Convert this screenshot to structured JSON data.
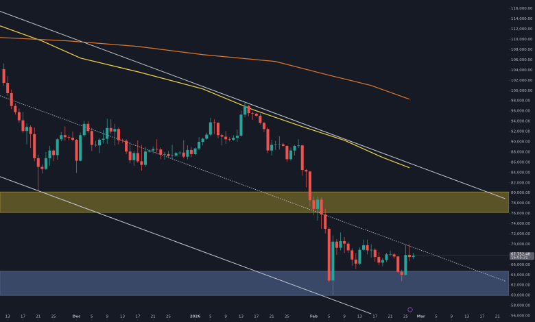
{
  "chart_data": {
    "type": "candlestick",
    "x": [
      "2025-11-12",
      "2025-11-13",
      "2025-11-14",
      "2025-11-15",
      "2025-11-16",
      "2025-11-17",
      "2025-11-18",
      "2025-11-19",
      "2025-11-20",
      "2025-11-21",
      "2025-11-22",
      "2025-11-23",
      "2025-11-24",
      "2025-11-25",
      "2025-11-26",
      "2025-11-27",
      "2025-11-28",
      "2025-11-29",
      "2025-11-30",
      "2025-12-01",
      "2025-12-02",
      "2025-12-03",
      "2025-12-04",
      "2025-12-05",
      "2025-12-06",
      "2025-12-07",
      "2025-12-08",
      "2025-12-09",
      "2025-12-10",
      "2025-12-11",
      "2025-12-12",
      "2025-12-13",
      "2025-12-14",
      "2025-12-15",
      "2025-12-16",
      "2025-12-17",
      "2025-12-18",
      "2025-12-19",
      "2025-12-20",
      "2025-12-21",
      "2025-12-22",
      "2025-12-23",
      "2025-12-24",
      "2025-12-25",
      "2025-12-26",
      "2025-12-27",
      "2025-12-28",
      "2025-12-29",
      "2025-12-30",
      "2025-12-31",
      "2026-01-01",
      "2026-01-02",
      "2026-01-03",
      "2026-01-04",
      "2026-01-05",
      "2026-01-06",
      "2026-01-07",
      "2026-01-08",
      "2026-01-09",
      "2026-01-10",
      "2026-01-11",
      "2026-01-12",
      "2026-01-13",
      "2026-01-14",
      "2026-01-15",
      "2026-01-16",
      "2026-01-17",
      "2026-01-18",
      "2026-01-19",
      "2026-01-20",
      "2026-01-21",
      "2026-01-22",
      "2026-01-23",
      "2026-01-24",
      "2026-01-25",
      "2026-01-26",
      "2026-01-27",
      "2026-01-28",
      "2026-01-29",
      "2026-01-30",
      "2026-01-31",
      "2026-02-01",
      "2026-02-02",
      "2026-02-03",
      "2026-02-04",
      "2026-02-05",
      "2026-02-06",
      "2026-02-07",
      "2026-02-08",
      "2026-02-09",
      "2026-02-10",
      "2026-02-11",
      "2026-02-12",
      "2026-02-13",
      "2026-02-14",
      "2026-02-15",
      "2026-02-16",
      "2026-02-17",
      "2026-02-18",
      "2026-02-19",
      "2026-02-20",
      "2026-02-21",
      "2026-02-22",
      "2026-02-23",
      "2026-02-24",
      "2026-02-25",
      "2026-02-26",
      "2026-02-27"
    ],
    "open": [
      104200,
      101500,
      99500,
      97000,
      95800,
      94200,
      92100,
      92900,
      91500,
      86800,
      85100,
      84700,
      86800,
      88300,
      87400,
      90500,
      91300,
      90900,
      90800,
      90400,
      86300,
      91300,
      93500,
      92100,
      89400,
      89300,
      90400,
      90600,
      92700,
      92000,
      92500,
      90300,
      90200,
      88100,
      86400,
      87800,
      86200,
      85500,
      88100,
      88300,
      88600,
      88500,
      87500,
      87600,
      87200,
      87300,
      87800,
      87900,
      87100,
      88400,
      87600,
      88700,
      90000,
      90600,
      91400,
      93800,
      93700,
      91300,
      91000,
      90500,
      90400,
      90800,
      91200,
      95300,
      97000,
      95600,
      95500,
      95100,
      93700,
      92500,
      88300,
      89400,
      89500,
      89500,
      89200,
      86600,
      88300,
      89200,
      89300,
      84500,
      84200,
      78600,
      76900,
      78700,
      75800,
      73000,
      62900,
      70500,
      69300,
      70600,
      70100,
      68800,
      67000,
      66200,
      68900,
      69800,
      68800,
      68900,
      67500,
      66400,
      66900,
      68000,
      68000,
      67600,
      64600,
      64000,
      67900,
      67500
    ],
    "high": [
      105300,
      102800,
      100200,
      97500,
      96500,
      95800,
      93600,
      93200,
      92800,
      87500,
      85600,
      88000,
      89200,
      88500,
      90700,
      91900,
      93000,
      91300,
      92000,
      90500,
      91800,
      94100,
      94000,
      92700,
      90200,
      90700,
      92300,
      94500,
      94400,
      93500,
      92800,
      90600,
      90500,
      90000,
      88200,
      90300,
      89400,
      89000,
      88500,
      89100,
      90500,
      88900,
      88000,
      88200,
      89400,
      88000,
      88200,
      90300,
      89300,
      89000,
      88900,
      90900,
      90800,
      91800,
      94700,
      94400,
      93800,
      91600,
      92100,
      90900,
      91300,
      92400,
      96100,
      97900,
      97200,
      95900,
      95600,
      95500,
      93900,
      92800,
      90400,
      90200,
      91100,
      89800,
      89300,
      88900,
      89400,
      90500,
      89400,
      84700,
      84300,
      79300,
      79300,
      79100,
      76900,
      73300,
      71700,
      71000,
      72300,
      71400,
      70500,
      69200,
      68300,
      69400,
      70900,
      70900,
      70000,
      69200,
      68400,
      67300,
      68300,
      68700,
      68300,
      67700,
      65000,
      69900,
      70000,
      68300
    ],
    "low": [
      101000,
      99000,
      96400,
      95300,
      93700,
      91700,
      89500,
      88800,
      86200,
      80600,
      83800,
      84500,
      85300,
      86200,
      86500,
      90100,
      90200,
      90300,
      90100,
      83900,
      86200,
      91000,
      91700,
      88200,
      89000,
      87800,
      89700,
      89600,
      91500,
      89300,
      89500,
      89800,
      87600,
      85800,
      85300,
      85900,
      84400,
      85100,
      87900,
      87700,
      87900,
      86600,
      86500,
      86900,
      86600,
      87100,
      87400,
      86800,
      86600,
      87000,
      87400,
      88400,
      89300,
      90400,
      91100,
      91500,
      90700,
      89300,
      89600,
      90100,
      90200,
      90000,
      91000,
      94800,
      95000,
      94300,
      94900,
      93400,
      91900,
      87800,
      87300,
      88400,
      88500,
      89100,
      86100,
      86300,
      87300,
      88800,
      83400,
      81100,
      77400,
      75700,
      74600,
      73000,
      72100,
      62600,
      60100,
      67900,
      68800,
      68300,
      68300,
      65800,
      65200,
      65900,
      68700,
      68000,
      67400,
      66600,
      65900,
      65700,
      66500,
      67700,
      67200,
      64300,
      62800,
      63900,
      66700,
      67100
    ],
    "close": [
      101500,
      99500,
      97000,
      95800,
      94200,
      92100,
      92900,
      91500,
      86800,
      85100,
      84700,
      86800,
      88300,
      87400,
      90500,
      91300,
      90900,
      90800,
      90400,
      86300,
      91300,
      93500,
      92100,
      89400,
      89300,
      90400,
      90600,
      92700,
      92000,
      92500,
      90300,
      90200,
      88100,
      86400,
      87800,
      86200,
      85500,
      88100,
      88300,
      88600,
      88500,
      87500,
      87600,
      87200,
      87300,
      87800,
      87900,
      87100,
      88400,
      87600,
      88700,
      90000,
      90600,
      91400,
      93800,
      93700,
      91300,
      91000,
      90500,
      90400,
      90800,
      91200,
      95300,
      97000,
      95600,
      95500,
      95100,
      93700,
      92500,
      88300,
      89400,
      89500,
      89500,
      89200,
      86600,
      88300,
      89200,
      89300,
      84500,
      84200,
      78600,
      76900,
      78700,
      75800,
      73000,
      62900,
      70500,
      69300,
      70600,
      70100,
      68800,
      67000,
      66200,
      68900,
      69800,
      68800,
      68900,
      67500,
      66400,
      66900,
      68000,
      68000,
      67600,
      64600,
      64000,
      67900,
      67500,
      67752.48
    ],
    "up_color": "#26a69a",
    "down_color": "#ef5350",
    "xlim": [
      "2025-11-11",
      "2026-03-24"
    ],
    "ylim": [
      54800,
      117700
    ],
    "xticks": [
      {
        "value": "2025-11-13",
        "label": "13"
      },
      {
        "value": "2025-11-17",
        "label": "17"
      },
      {
        "value": "2025-11-21",
        "label": "21"
      },
      {
        "value": "2025-11-25",
        "label": "25"
      },
      {
        "value": "2025-12-01",
        "label": "Dec"
      },
      {
        "value": "2025-12-05",
        "label": "5"
      },
      {
        "value": "2025-12-09",
        "label": "9"
      },
      {
        "value": "2025-12-13",
        "label": "13"
      },
      {
        "value": "2025-12-17",
        "label": "17"
      },
      {
        "value": "2025-12-21",
        "label": "21"
      },
      {
        "value": "2025-12-25",
        "label": "25"
      },
      {
        "value": "2026-01-01",
        "label": "2026"
      },
      {
        "value": "2026-01-05",
        "label": "5"
      },
      {
        "value": "2026-01-09",
        "label": "9"
      },
      {
        "value": "2026-01-13",
        "label": "13"
      },
      {
        "value": "2026-01-17",
        "label": "17"
      },
      {
        "value": "2026-01-21",
        "label": "21"
      },
      {
        "value": "2026-01-25",
        "label": "25"
      },
      {
        "value": "2026-02-01",
        "label": "Feb"
      },
      {
        "value": "2026-02-05",
        "label": "5"
      },
      {
        "value": "2026-02-09",
        "label": "9"
      },
      {
        "value": "2026-02-13",
        "label": "13"
      },
      {
        "value": "2026-02-17",
        "label": "17"
      },
      {
        "value": "2026-02-21",
        "label": "21"
      },
      {
        "value": "2026-02-25",
        "label": "25"
      },
      {
        "value": "2026-03-01",
        "label": "Mar"
      },
      {
        "value": "2026-03-05",
        "label": "5"
      },
      {
        "value": "2026-03-09",
        "label": "9"
      },
      {
        "value": "2026-03-13",
        "label": "13"
      },
      {
        "value": "2026-03-17",
        "label": "17"
      },
      {
        "value": "2026-03-21",
        "label": "21"
      }
    ],
    "yticks": [
      {
        "value": 56000,
        "label": "56,000.00"
      },
      {
        "value": 58000,
        "label": "58,000.00"
      },
      {
        "value": 60000,
        "label": "60,000.00"
      },
      {
        "value": 62000,
        "label": "62,000.00"
      },
      {
        "value": 64000,
        "label": "64,000.00"
      },
      {
        "value": 66000,
        "label": "66,000.00"
      },
      {
        "value": 68000,
        "label": "68,000.00"
      },
      {
        "value": 70000,
        "label": "70,000.00"
      },
      {
        "value": 72000,
        "label": "72,000.00"
      },
      {
        "value": 74000,
        "label": "74,000.00"
      },
      {
        "value": 76000,
        "label": "76,000.00"
      },
      {
        "value": 78000,
        "label": "78,000.00"
      },
      {
        "value": 80000,
        "label": "80,000.00"
      },
      {
        "value": 82000,
        "label": "82,000.00"
      },
      {
        "value": 84000,
        "label": "84,000.00"
      },
      {
        "value": 86000,
        "label": "86,000.00"
      },
      {
        "value": 88000,
        "label": "88,000.00"
      },
      {
        "value": 90000,
        "label": "90,000.00"
      },
      {
        "value": 92000,
        "label": "92,000.00"
      },
      {
        "value": 94000,
        "label": "94,000.00"
      },
      {
        "value": 96000,
        "label": "96,000.00"
      },
      {
        "value": 98000,
        "label": "98,000.00"
      },
      {
        "value": 100000,
        "label": "100,000.00"
      },
      {
        "value": 102000,
        "label": "102,000.00"
      },
      {
        "value": 104000,
        "label": "104,000.00"
      },
      {
        "value": 106000,
        "label": "106,000.00"
      },
      {
        "value": 108000,
        "label": "108,000.00"
      },
      {
        "value": 110000,
        "label": "110,000.00"
      },
      {
        "value": 112000,
        "label": "112,000.00"
      },
      {
        "value": 114000,
        "label": "114,000.00"
      },
      {
        "value": 116000,
        "label": "116,000.00"
      }
    ],
    "moving_averages": [
      {
        "color": "#f0d64a",
        "x": [
          "2025-11-11",
          "2025-11-22",
          "2025-12-02",
          "2025-12-17",
          "2026-01-03",
          "2026-01-16",
          "2026-01-29",
          "2026-02-09",
          "2026-02-19",
          "2026-02-26"
        ],
        "values": [
          112650,
          109700,
          106360,
          103680,
          100330,
          96310,
          92960,
          90290,
          86940,
          84930
        ]
      },
      {
        "color": "#e0782a",
        "x": [
          "2025-11-11",
          "2025-11-29",
          "2025-12-17",
          "2026-01-03",
          "2026-01-22",
          "2026-02-05",
          "2026-02-16",
          "2026-02-26"
        ],
        "values": [
          110380,
          109700,
          108630,
          107030,
          105690,
          103010,
          101000,
          98320
        ]
      }
    ],
    "trendlines": [
      {
        "color": "#c8ccd6",
        "style": "solid",
        "x": [
          "2025-11-11",
          "2026-03-23"
        ],
        "values": [
          115500,
          78900
        ]
      },
      {
        "color": "#c8ccd6",
        "style": "solid",
        "x": [
          "2025-11-11",
          "2026-02-16"
        ],
        "values": [
          83200,
          56400
        ]
      },
      {
        "color": "#c8ccd6",
        "style": "dotted",
        "x": [
          "2025-11-11",
          "2026-03-23"
        ],
        "values": [
          99000,
          62800
        ]
      }
    ],
    "zones": [
      {
        "from": 76200,
        "to": 80200,
        "color": "#5a5328",
        "border": "#9d8f3a"
      },
      {
        "from": 60000,
        "to": 64700,
        "color": "#3a4868",
        "border": "#56668c"
      }
    ],
    "last_price": {
      "value": 67752.48,
      "label": "67,752.48"
    },
    "countdown": "16:05:31"
  }
}
